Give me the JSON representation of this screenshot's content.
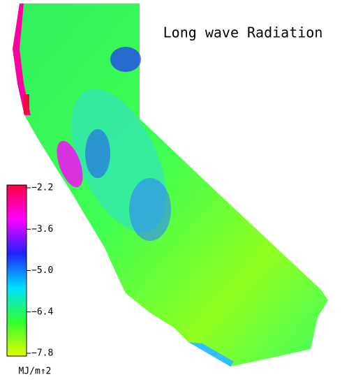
{
  "title": "Long wave Radiation",
  "colorbar": {
    "range": [
      -2.2,
      -7.8
    ],
    "colors": [
      "#ff0040",
      "#ff00ff",
      "#2020ff",
      "#00e0ff",
      "#30ff30",
      "#e0ff00"
    ],
    "ticks": [
      {
        "value": -2.2,
        "label": "−2.2"
      },
      {
        "value": -3.6,
        "label": "−3.6"
      },
      {
        "value": -5.0,
        "label": "−5.0"
      },
      {
        "value": -6.4,
        "label": "−6.4"
      },
      {
        "value": -7.8,
        "label": "−7.8"
      }
    ],
    "unit": "MJ/m↑2"
  }
}
